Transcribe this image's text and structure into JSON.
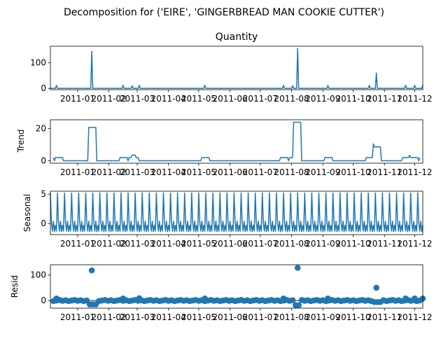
{
  "chart_data": {
    "type": "line",
    "title": "Decomposition for ('EIRE', 'GINGERBREAD MAN COOKIE CUTTER')",
    "xlim": [
      "2010-12-05",
      "2011-12-09"
    ],
    "x_ticks": [
      "2011-01",
      "2011-02",
      "2011-03",
      "2011-04",
      "2011-05",
      "2011-06",
      "2011-07",
      "2011-08",
      "2011-09",
      "2011-10",
      "2011-11",
      "2011-12"
    ],
    "x_tick_labels": [
      "2011-01",
      "2011-02",
      "2011-03",
      "2011-04",
      "2011-05",
      "2011-06",
      "2011-07",
      "2011-08",
      "2011-09",
      "2011-10",
      "2011-11",
      "2011-12"
    ],
    "seasonal_period_days": 7,
    "panels": [
      {
        "id": "observed",
        "label": "Quantity",
        "label_position": "title",
        "kind": "line",
        "ylim": [
          -5,
          165
        ],
        "y_ticks": [
          0,
          100
        ],
        "points": [
          [
            "2010-12-05",
            0
          ],
          [
            "2010-12-10",
            0
          ],
          [
            "2010-12-11",
            12
          ],
          [
            "2010-12-12",
            0
          ],
          [
            "2011-01-14",
            0
          ],
          [
            "2011-01-15",
            145
          ],
          [
            "2011-01-16",
            0
          ],
          [
            "2011-02-14",
            0
          ],
          [
            "2011-02-15",
            12
          ],
          [
            "2011-02-16",
            0
          ],
          [
            "2011-02-23",
            0
          ],
          [
            "2011-02-24",
            10
          ],
          [
            "2011-02-25",
            0
          ],
          [
            "2011-03-02",
            0
          ],
          [
            "2011-03-03",
            12
          ],
          [
            "2011-03-04",
            0
          ],
          [
            "2011-05-06",
            0
          ],
          [
            "2011-05-07",
            12
          ],
          [
            "2011-05-08",
            0
          ],
          [
            "2011-07-23",
            0
          ],
          [
            "2011-07-24",
            12
          ],
          [
            "2011-07-25",
            0
          ],
          [
            "2011-08-01",
            0
          ],
          [
            "2011-08-02",
            10
          ],
          [
            "2011-08-03",
            0
          ],
          [
            "2011-08-06",
            0
          ],
          [
            "2011-08-07",
            156
          ],
          [
            "2011-08-08",
            0
          ],
          [
            "2011-09-05",
            0
          ],
          [
            "2011-09-06",
            12
          ],
          [
            "2011-09-07",
            0
          ],
          [
            "2011-10-16",
            0
          ],
          [
            "2011-10-17",
            12
          ],
          [
            "2011-10-18",
            0
          ],
          [
            "2011-10-23",
            0
          ],
          [
            "2011-10-24",
            60
          ],
          [
            "2011-10-25",
            0
          ],
          [
            "2011-11-21",
            0
          ],
          [
            "2011-11-22",
            12
          ],
          [
            "2011-11-23",
            0
          ],
          [
            "2011-11-30",
            0
          ],
          [
            "2011-12-01",
            12
          ],
          [
            "2011-12-02",
            0
          ],
          [
            "2011-12-08",
            0
          ],
          [
            "2011-12-09",
            12
          ]
        ]
      },
      {
        "id": "trend",
        "label": "Trend",
        "label_position": "ylabel",
        "kind": "line",
        "ylim": [
          -1.5,
          25.5
        ],
        "y_ticks": [
          0,
          20
        ],
        "points": [
          [
            "2010-12-08",
            2
          ],
          [
            "2010-12-09",
            0
          ],
          [
            "2010-12-10",
            2
          ],
          [
            "2010-12-17",
            2
          ],
          [
            "2010-12-18",
            0
          ],
          [
            "2011-01-11",
            0
          ],
          [
            "2011-01-12",
            20.7
          ],
          [
            "2011-01-19",
            20.7
          ],
          [
            "2011-01-20",
            0
          ],
          [
            "2011-02-11",
            0
          ],
          [
            "2011-02-12",
            2
          ],
          [
            "2011-02-19",
            2
          ],
          [
            "2011-02-20",
            0
          ],
          [
            "2011-02-21",
            2
          ],
          [
            "2011-02-23",
            2
          ],
          [
            "2011-02-24",
            3.5
          ],
          [
            "2011-02-27",
            3.5
          ],
          [
            "2011-02-28",
            2
          ],
          [
            "2011-03-02",
            2
          ],
          [
            "2011-03-03",
            0
          ],
          [
            "2011-05-03",
            0
          ],
          [
            "2011-05-04",
            2
          ],
          [
            "2011-05-11",
            2
          ],
          [
            "2011-05-12",
            0
          ],
          [
            "2011-07-20",
            0
          ],
          [
            "2011-07-21",
            2
          ],
          [
            "2011-07-28",
            2
          ],
          [
            "2011-07-29",
            0
          ],
          [
            "2011-07-30",
            2
          ],
          [
            "2011-08-02",
            2
          ],
          [
            "2011-08-03",
            24
          ],
          [
            "2011-08-10",
            24
          ],
          [
            "2011-08-11",
            0
          ],
          [
            "2011-09-02",
            0
          ],
          [
            "2011-09-03",
            2
          ],
          [
            "2011-09-10",
            2
          ],
          [
            "2011-09-11",
            0
          ],
          [
            "2011-10-13",
            0
          ],
          [
            "2011-10-14",
            2
          ],
          [
            "2011-10-20",
            2
          ],
          [
            "2011-10-21",
            10.5
          ],
          [
            "2011-10-22",
            8.6
          ],
          [
            "2011-10-28",
            8.6
          ],
          [
            "2011-10-29",
            0
          ],
          [
            "2011-11-18",
            0
          ],
          [
            "2011-11-19",
            2
          ],
          [
            "2011-11-25",
            2
          ],
          [
            "2011-11-26",
            3.5
          ],
          [
            "2011-11-27",
            2
          ],
          [
            "2011-12-04",
            2
          ],
          [
            "2011-12-05",
            0
          ],
          [
            "2011-12-06",
            2
          ]
        ]
      },
      {
        "id": "seasonal",
        "label": "Seasonal",
        "label_position": "ylabel",
        "kind": "line",
        "ylim": [
          -1.9,
          5.5
        ],
        "y_ticks": [
          0,
          5
        ],
        "season_pattern": [
          5.2,
          0.2,
          -1.3,
          0.4,
          -1.4,
          -0.3,
          -1.3
        ]
      },
      {
        "id": "resid",
        "label": "Resid",
        "label_position": "ylabel",
        "kind": "scatter",
        "ylim": [
          -30,
          140
        ],
        "y_ticks": [
          0,
          100
        ],
        "outliers": [
          [
            "2011-01-15",
            118
          ],
          [
            "2011-08-07",
            128
          ],
          [
            "2011-10-24",
            50
          ],
          [
            "2010-12-11",
            8
          ],
          [
            "2011-02-15",
            8
          ],
          [
            "2011-03-03",
            9
          ],
          [
            "2011-05-07",
            8
          ],
          [
            "2011-07-24",
            8
          ],
          [
            "2011-09-06",
            8
          ],
          [
            "2011-11-22",
            8
          ],
          [
            "2011-12-01",
            8
          ],
          [
            "2011-12-09",
            8
          ]
        ],
        "dips": [
          [
            "2011-01-12",
            "2011-01-19",
            -15
          ],
          [
            "2011-08-03",
            "2011-08-10",
            -18
          ],
          [
            "2011-10-21",
            "2011-10-28",
            -6
          ]
        ]
      }
    ]
  }
}
